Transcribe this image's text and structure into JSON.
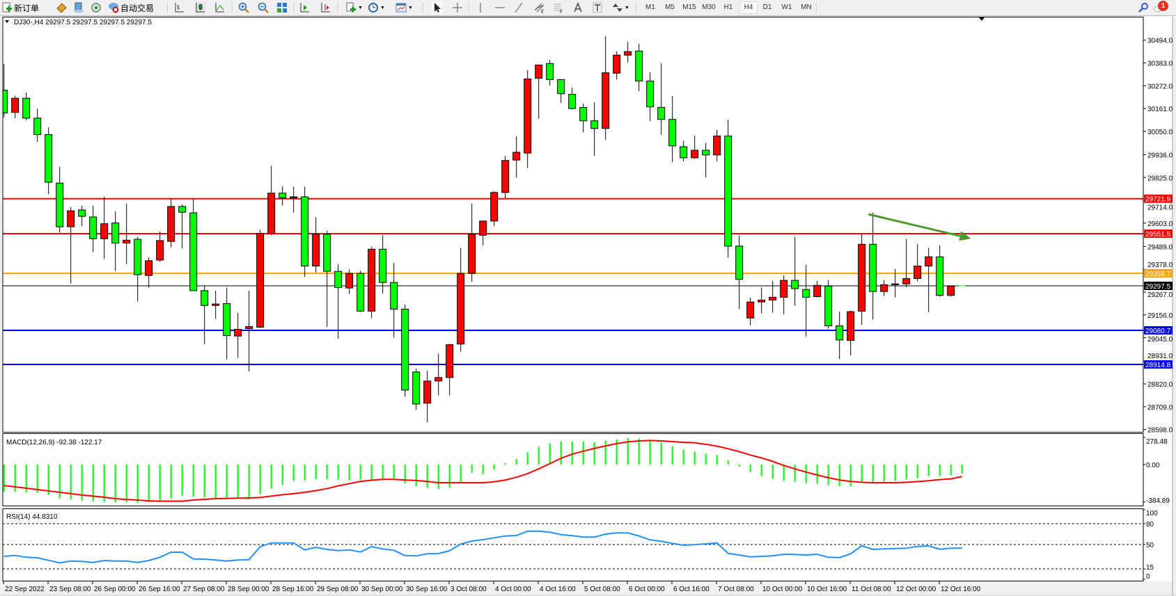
{
  "toolbar": {
    "new_order_label": "新订单",
    "auto_trading_label": "自动交易",
    "timeframes": [
      "M1",
      "M5",
      "M15",
      "M30",
      "H1",
      "H4",
      "D1",
      "W1",
      "MN"
    ],
    "active_timeframe": "H4",
    "notification_count": "1",
    "icons": [
      "new-order-icon",
      "market-watch-icon",
      "navigator-icon",
      "signal-icon",
      "auto-trading-icon",
      "bar-chart-icon",
      "candlestick-icon",
      "line-chart-icon",
      "zoom-in-icon",
      "zoom-out-icon",
      "tile-windows-icon",
      "auto-scroll-icon",
      "chart-shift-icon",
      "indicators-icon",
      "periods-icon",
      "templates-icon",
      "cursor-icon",
      "crosshair-icon",
      "vertical-line-icon",
      "horizontal-line-icon",
      "trendline-icon",
      "equidistant-channel-icon",
      "fibonacci-icon",
      "text-icon",
      "text-label-icon",
      "arrows-icon",
      "search-icon",
      "notification-icon"
    ]
  },
  "chart": {
    "header": "DJ30-,H4  29297.5 29297.5 29297.5 29297.5"
  },
  "chart_data": {
    "type": "candlestick",
    "symbol": "DJ30-",
    "timeframe": "H4",
    "up_color": "#ff0000",
    "down_color": "#00ff00",
    "candles_ohlc": [
      [
        30250,
        30378,
        30118,
        30140
      ],
      [
        30142,
        30222,
        30114,
        30211
      ],
      [
        30211,
        30239,
        30103,
        30114
      ],
      [
        30114,
        30160,
        29999,
        30034
      ],
      [
        30034,
        30069,
        29744,
        29802
      ],
      [
        29798,
        29878,
        29557,
        29585
      ],
      [
        29585,
        29682,
        29309,
        29663
      ],
      [
        29667,
        29688,
        29589,
        29636
      ],
      [
        29633,
        29688,
        29462,
        29527
      ],
      [
        29527,
        29732,
        29428,
        29600
      ],
      [
        29604,
        29661,
        29370,
        29506
      ],
      [
        29506,
        29698,
        29404,
        29520
      ],
      [
        29524,
        29536,
        29222,
        29352
      ],
      [
        29348,
        29436,
        29289,
        29420
      ],
      [
        29423,
        29562,
        29414,
        29518
      ],
      [
        29514,
        29722,
        29485,
        29684
      ],
      [
        29684,
        29695,
        29479,
        29656
      ],
      [
        29653,
        29722,
        29274,
        29274
      ],
      [
        29274,
        29300,
        29014,
        29202
      ],
      [
        29202,
        29274,
        29137,
        29209
      ],
      [
        29211,
        29289,
        28939,
        29055
      ],
      [
        29053,
        29166,
        28946,
        29086
      ],
      [
        29089,
        29274,
        28881,
        29099
      ],
      [
        29096,
        29570,
        29092,
        29553
      ],
      [
        29553,
        29882,
        29544,
        29749
      ],
      [
        29749,
        29783,
        29688,
        29726
      ],
      [
        29726,
        29780,
        29654,
        29731
      ],
      [
        29731,
        29780,
        29342,
        29394
      ],
      [
        29394,
        29631,
        29362,
        29549
      ],
      [
        29549,
        29566,
        29098,
        29368
      ],
      [
        29368,
        29404,
        29040,
        29289
      ],
      [
        29287,
        29378,
        29258,
        29358
      ],
      [
        29358,
        29371,
        29170,
        29174
      ],
      [
        29174,
        29487,
        29140,
        29476
      ],
      [
        29476,
        29544,
        29260,
        29314
      ],
      [
        29314,
        29410,
        29046,
        29184
      ],
      [
        29184,
        29206,
        28758,
        28790
      ],
      [
        28878,
        28894,
        28693,
        28722
      ],
      [
        28726,
        28884,
        28633,
        28834
      ],
      [
        28834,
        28968,
        28764,
        28851
      ],
      [
        28851,
        29016,
        28764,
        29011
      ],
      [
        29014,
        29482,
        28978,
        29358
      ],
      [
        29358,
        29698,
        29318,
        29549
      ],
      [
        29544,
        29613,
        29494,
        29613
      ],
      [
        29613,
        29758,
        29589,
        29752
      ],
      [
        29752,
        29930,
        29724,
        29908
      ],
      [
        29910,
        30025,
        29825,
        29948
      ],
      [
        29944,
        30347,
        29871,
        30305
      ],
      [
        30308,
        30373,
        30111,
        30373
      ],
      [
        30380,
        30398,
        30273,
        30302
      ],
      [
        30302,
        30302,
        30188,
        30233
      ],
      [
        30230,
        30263,
        30157,
        30161
      ],
      [
        30166,
        30185,
        30046,
        30101
      ],
      [
        30101,
        30191,
        29931,
        30064
      ],
      [
        30064,
        30513,
        30009,
        30335
      ],
      [
        30333,
        30439,
        30302,
        30421
      ],
      [
        30421,
        30486,
        30385,
        30438
      ],
      [
        30441,
        30476,
        30246,
        30295
      ],
      [
        30295,
        30337,
        30099,
        30169
      ],
      [
        30166,
        30381,
        30033,
        30108
      ],
      [
        30108,
        30221,
        29900,
        29979
      ],
      [
        29975,
        30004,
        29903,
        29921
      ],
      [
        29921,
        30029,
        29916,
        29958
      ],
      [
        29958,
        29994,
        29826,
        29935
      ],
      [
        29935,
        30058,
        29903,
        30027
      ],
      [
        30027,
        30107,
        29435,
        29491
      ],
      [
        29491,
        29543,
        29184,
        29329
      ],
      [
        29141,
        29240,
        29105,
        29219
      ],
      [
        29219,
        29290,
        29163,
        29228
      ],
      [
        29228,
        29322,
        29167,
        29242
      ],
      [
        29242,
        29349,
        29159,
        29324
      ],
      [
        29324,
        29536,
        29201,
        29284
      ],
      [
        29280,
        29400,
        29051,
        29242
      ],
      [
        29245,
        29322,
        29241,
        29300
      ],
      [
        29296,
        29326,
        29089,
        29103
      ],
      [
        29103,
        29172,
        28942,
        29034
      ],
      [
        29032,
        29176,
        28959,
        29172
      ],
      [
        29174,
        29549,
        29108,
        29500
      ],
      [
        29500,
        29653,
        29133,
        29270
      ],
      [
        29270,
        29326,
        29248,
        29303
      ],
      [
        29303,
        29380,
        29241,
        29307
      ],
      [
        29307,
        29526,
        29292,
        29333
      ],
      [
        29333,
        29501,
        29319,
        29394
      ],
      [
        29394,
        29482,
        29170,
        29439
      ],
      [
        29439,
        29494,
        29245,
        29251
      ],
      [
        29251,
        29300,
        29245,
        29296
      ],
      [
        29297.5,
        29297.5,
        29297.5,
        29297.5
      ]
    ],
    "x_tick_labels": [
      "22 Sep 2022",
      "23 Sep 08:00",
      "26 Sep 00:00",
      "26 Sep 16:00",
      "27 Sep 08:00",
      "28 Sep 00:00",
      "28 Sep 16:00",
      "29 Sep 08:00",
      "30 Sep 00:00",
      "30 Sep 16:00",
      "3 Oct 08:00",
      "4 Oct 00:00",
      "4 Oct 16:00",
      "5 Oct 08:00",
      "6 Oct 00:00",
      "6 Oct 16:00",
      "7 Oct 08:00",
      "10 Oct 00:00",
      "10 Oct 16:00",
      "11 Oct 08:00",
      "12 Oct 00:00",
      "12 Oct 16:00"
    ],
    "x_tick_every_bars": 4,
    "y_ticks": [
      "30494.0",
      "30383.0",
      "30272.0",
      "30161.0",
      "30050.0",
      "29936.0",
      "29825.0",
      "29714.0",
      "29603.0",
      "29489.0",
      "29378.0",
      "29267.0",
      "29156.0",
      "29045.0",
      "28931.0",
      "28820.0",
      "28709.0",
      "28598.0"
    ],
    "ylim": [
      28585,
      30610
    ],
    "levels": [
      {
        "price": 29721.9,
        "label": "29721.9",
        "color": "#ff0000",
        "text_color": "#ffffff"
      },
      {
        "price": 29551.5,
        "label": "29551.5",
        "color": "#ff0000",
        "text_color": "#ffffff"
      },
      {
        "price": 29358.7,
        "label": "29358.7",
        "color": "#ffa500",
        "text_color": "#ffffff"
      },
      {
        "price": 29080.7,
        "label": "29080.7",
        "color": "#0000ff",
        "text_color": "#ffffff"
      },
      {
        "price": 28914.8,
        "label": "28914.8",
        "color": "#0000ff",
        "text_color": "#ffffff"
      }
    ],
    "bid": {
      "price": 29297.5,
      "label": "29297.5",
      "color": "#000000",
      "text_color": "#ffffff"
    },
    "trend_arrow": {
      "from": {
        "bar": 77.6,
        "price": 29646
      },
      "to": {
        "bar": 86.8,
        "price": 29528
      },
      "color": "#4a9a2a"
    },
    "macd": {
      "label": "MACD(12,26,9) -92.38 -122.17",
      "axis_labels": [
        {
          "value": 278.48,
          "text": "278.48"
        },
        {
          "value": 0,
          "text": "0.00"
        },
        {
          "value": -384.89,
          "text": "-384.89"
        }
      ],
      "histogram_color": "#00ff00",
      "signal_color": "#ff0000",
      "histogram": [
        -278,
        -278,
        -287,
        -289,
        -313,
        -348,
        -359,
        -373,
        -378,
        -383,
        -387,
        -387,
        -394,
        -385,
        -369,
        -350,
        -320,
        -331,
        -338,
        -343,
        -345,
        -345,
        -355,
        -303,
        -247,
        -208,
        -166,
        -163,
        -152,
        -152,
        -154,
        -159,
        -154,
        -154,
        -147,
        -145,
        -194,
        -222,
        -240,
        -252,
        -236,
        -182,
        -84,
        -98,
        -49,
        14,
        56,
        126,
        182,
        217,
        238,
        238,
        238,
        231,
        245,
        259,
        273,
        266,
        243,
        224,
        189,
        154,
        133,
        112,
        98,
        42,
        -21,
        -77,
        -119,
        -147,
        -168,
        -175,
        -189,
        -196,
        -210,
        -224,
        -224,
        -189,
        -182,
        -175,
        -168,
        -154,
        -140,
        -119,
        -119,
        -112,
        -92.38
      ],
      "signal": [
        -215,
        -229,
        -243,
        -257,
        -271,
        -285,
        -299,
        -313,
        -324,
        -336,
        -350,
        -359,
        -364,
        -373,
        -376,
        -376,
        -376,
        -364,
        -357,
        -350,
        -348,
        -345,
        -343,
        -338,
        -324,
        -310,
        -299,
        -285,
        -268,
        -247,
        -219,
        -196,
        -173,
        -161,
        -152,
        -152,
        -159,
        -163,
        -173,
        -187,
        -187,
        -187,
        -187,
        -187,
        -177,
        -159,
        -131,
        -93,
        -44,
        9,
        65,
        107,
        138,
        166,
        191,
        215,
        233,
        243,
        247,
        243,
        236,
        229,
        224,
        208,
        189,
        163,
        133,
        98,
        68,
        33,
        -9,
        -44,
        -77,
        -107,
        -135,
        -159,
        -173,
        -182,
        -187,
        -187,
        -187,
        -182,
        -175,
        -166,
        -154,
        -147,
        -122.17
      ]
    },
    "rsi": {
      "label": "RSI(14) 44.8310",
      "levels": [
        80,
        50,
        15
      ],
      "axis_labels": [
        {
          "value": 100,
          "text": "100"
        },
        {
          "value": 80,
          "text": "80"
        },
        {
          "value": 50,
          "text": "50"
        },
        {
          "value": 15,
          "text": "15"
        },
        {
          "value": 0,
          "text": "0"
        }
      ],
      "color": "#1e90ff",
      "values": [
        33,
        34.3,
        31.7,
        31,
        27.3,
        23.7,
        26.3,
        25.7,
        24.3,
        27,
        26.3,
        26.3,
        24.3,
        27,
        31.7,
        39,
        39,
        29.3,
        29,
        27.7,
        26.3,
        27.7,
        28.3,
        47,
        52.3,
        52.3,
        52.3,
        42.3,
        46,
        43,
        41.3,
        42.3,
        39.3,
        47,
        43.7,
        41.7,
        34,
        33.7,
        36.7,
        37,
        41,
        50.7,
        55,
        57,
        59.7,
        62.3,
        63,
        69.3,
        69.3,
        67.7,
        64.3,
        62.7,
        60.7,
        60.7,
        65,
        66.7,
        66.7,
        62.3,
        56.7,
        54.7,
        51.7,
        49,
        49.7,
        51,
        52.3,
        37.3,
        35,
        32.3,
        33,
        33.7,
        36,
        35.7,
        35,
        36,
        31.7,
        31.3,
        36.7,
        48.3,
        43,
        43.7,
        44.3,
        44.7,
        47.3,
        48,
        43.3,
        44.7,
        44.831
      ]
    }
  }
}
